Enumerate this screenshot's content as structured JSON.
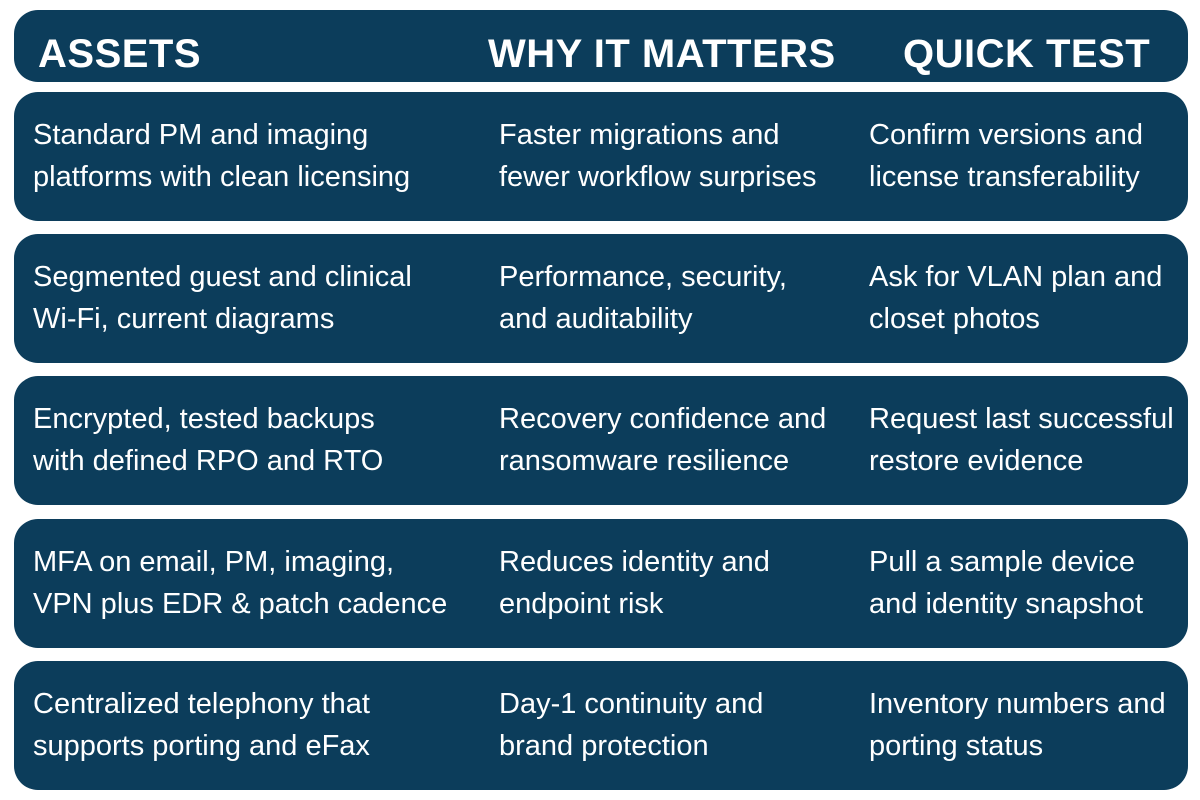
{
  "table": {
    "header": [
      "ASSETS",
      "WHY IT MATTERS",
      "QUICK TEST"
    ],
    "rows": [
      [
        [
          "Standard PM and imaging",
          "platforms with clean licensing"
        ],
        [
          "Faster migrations and",
          "fewer workflow surprises"
        ],
        [
          "Confirm versions and",
          "license transferability"
        ]
      ],
      [
        [
          "Segmented guest and clinical",
          "Wi-Fi, current diagrams"
        ],
        [
          "Performance, security,",
          "and auditability"
        ],
        [
          "Ask for VLAN plan and",
          "closet photos"
        ]
      ],
      [
        [
          "Encrypted, tested backups",
          "with defined RPO and RTO"
        ],
        [
          "Recovery confidence and",
          "ransomware resilience"
        ],
        [
          "Request last successful",
          "restore evidence"
        ]
      ],
      [
        [
          "MFA on email, PM, imaging,",
          "VPN plus EDR & patch cadence"
        ],
        [
          "Reduces identity and",
          "endpoint risk"
        ],
        [
          "Pull a sample device",
          "and identity snapshot"
        ]
      ],
      [
        [
          "Centralized telephony that",
          "supports porting and eFax"
        ],
        [
          "Day-1 continuity and",
          "brand protection"
        ],
        [
          "Inventory numbers and",
          "porting status"
        ]
      ]
    ]
  }
}
